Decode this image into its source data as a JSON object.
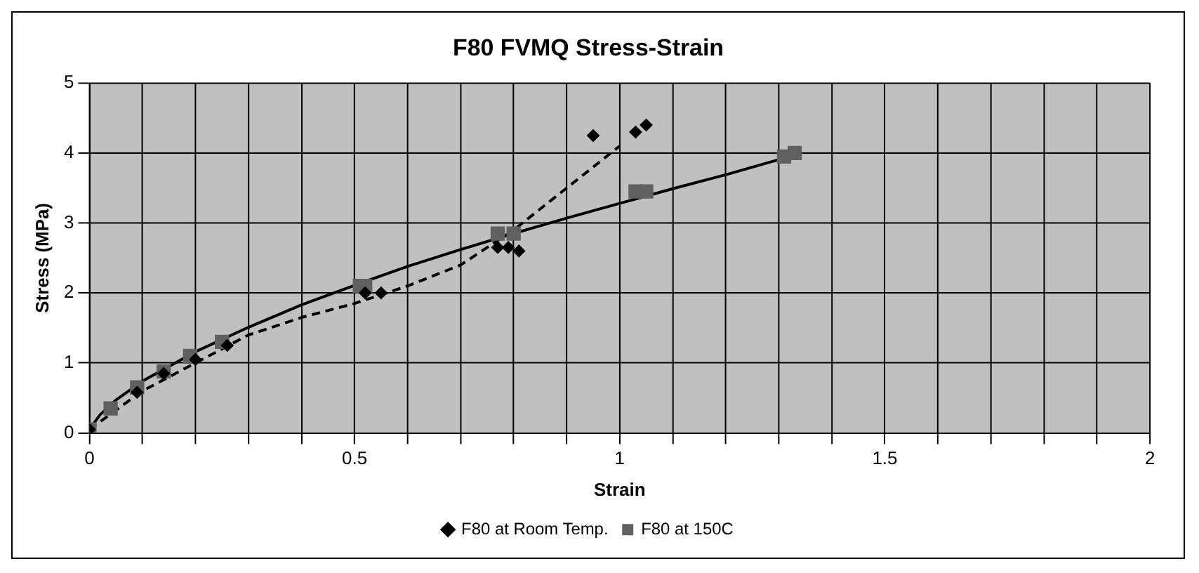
{
  "chart_data": {
    "type": "scatter",
    "title": "F80 FVMQ Stress-Strain",
    "xlabel": "Strain",
    "ylabel": "Stress (MPa)",
    "xlim": [
      0,
      2
    ],
    "ylim": [
      0,
      5
    ],
    "xticks": [
      0,
      {
        "value": 0.1,
        "label": null
      },
      {
        "value": 0.2,
        "label": null
      },
      {
        "value": 0.3,
        "label": null
      },
      {
        "value": 0.4,
        "label": null
      },
      0.5,
      {
        "value": 0.6,
        "label": null
      },
      {
        "value": 0.7,
        "label": null
      },
      {
        "value": 0.8,
        "label": null
      },
      {
        "value": 0.9,
        "label": null
      },
      1,
      {
        "value": 1.1,
        "label": null
      },
      {
        "value": 1.2,
        "label": null
      },
      {
        "value": 1.3,
        "label": null
      },
      {
        "value": 1.4,
        "label": null
      },
      1.5,
      {
        "value": 1.6,
        "label": null
      },
      {
        "value": 1.7,
        "label": null
      },
      {
        "value": 1.8,
        "label": null
      },
      {
        "value": 1.9,
        "label": null
      },
      2
    ],
    "yticks": [
      0,
      1,
      2,
      3,
      4,
      5
    ],
    "grid": true,
    "legend": "bottom",
    "series": [
      {
        "name": "F80 at Room Temp.",
        "color": "#000000",
        "marker": "diamond",
        "x": [
          0,
          0.09,
          0.14,
          0.2,
          0.26,
          0.52,
          0.55,
          0.77,
          0.79,
          0.81,
          0.95,
          1.03,
          1.05
        ],
        "values": [
          0.05,
          0.58,
          0.85,
          1.05,
          1.25,
          2.0,
          2.0,
          2.65,
          2.65,
          2.6,
          4.25,
          4.3,
          4.4
        ]
      },
      {
        "name": "F80 at 150C",
        "color": "#606060",
        "marker": "square",
        "x": [
          0,
          0.04,
          0.09,
          0.14,
          0.19,
          0.25,
          0.51,
          0.52,
          0.77,
          0.8,
          1.03,
          1.05,
          1.31,
          1.33
        ],
        "values": [
          0.05,
          0.35,
          0.65,
          0.88,
          1.1,
          1.3,
          2.1,
          2.1,
          2.85,
          2.85,
          3.45,
          3.45,
          3.95,
          4.0
        ]
      },
      {
        "type": "line",
        "color": "#000000",
        "marker": "none",
        "line_style": "dashed",
        "x": [
          0,
          0.1,
          0.2,
          0.3,
          0.4,
          0.5,
          0.6,
          0.7,
          0.8,
          0.9,
          1.0
        ],
        "values": [
          0.05,
          0.6,
          1.0,
          1.4,
          1.65,
          1.85,
          2.1,
          2.4,
          2.9,
          3.5,
          4.1
        ]
      },
      {
        "type": "line",
        "color": "#000000",
        "marker": "none",
        "line_style": "solid",
        "x": [
          0,
          0.02,
          0.05,
          0.1,
          0.2,
          0.3,
          0.4,
          0.5,
          0.6,
          0.7,
          0.8,
          0.9,
          1.0,
          1.1,
          1.2,
          1.33
        ],
        "values": [
          0.05,
          0.26,
          0.47,
          0.74,
          1.16,
          1.51,
          1.83,
          2.11,
          2.38,
          2.62,
          2.85,
          3.07,
          3.28,
          3.49,
          3.69,
          3.97
        ]
      }
    ]
  }
}
